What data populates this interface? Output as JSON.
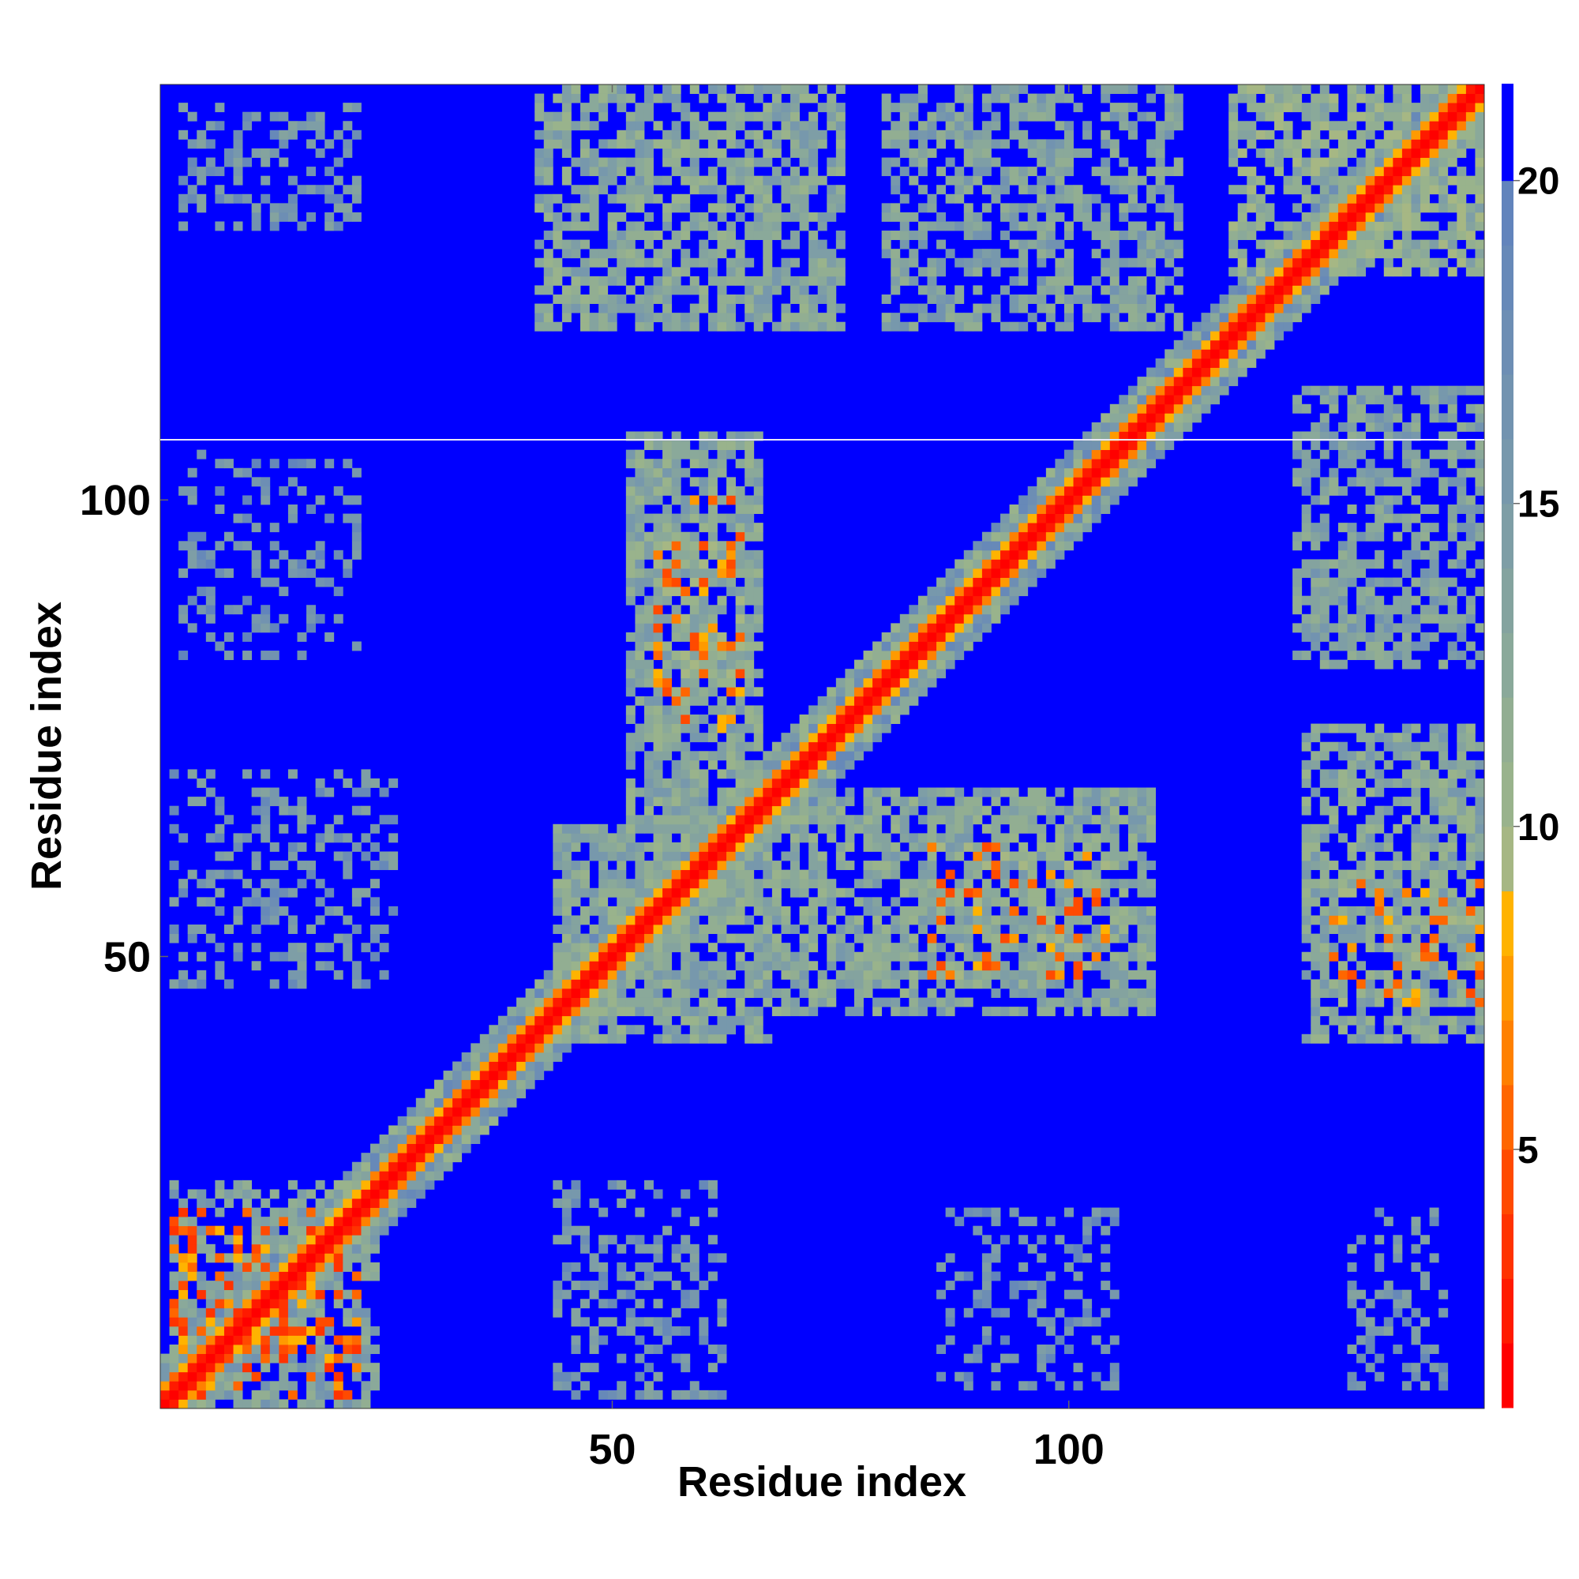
{
  "chart_data": {
    "type": "heatmap",
    "title": "",
    "xlabel": "Residue index",
    "ylabel": "Residue index",
    "n_residues": 145,
    "x_ticks": [
      {
        "value": 50,
        "label": "50"
      },
      {
        "value": 100,
        "label": "100"
      }
    ],
    "y_ticks": [
      {
        "value": 50,
        "label": "50"
      },
      {
        "value": 100,
        "label": "100"
      }
    ],
    "colorbar": {
      "range": [
        1,
        21.5
      ],
      "ticks": [
        {
          "value": 5,
          "label": "5"
        },
        {
          "value": 10,
          "label": "10"
        },
        {
          "value": 15,
          "label": "15"
        },
        {
          "value": 20,
          "label": "20"
        }
      ],
      "bins": [
        {
          "from": 1,
          "to": 2,
          "color": "#ff0000"
        },
        {
          "from": 2,
          "to": 3,
          "color": "#ff1a00"
        },
        {
          "from": 3,
          "to": 4,
          "color": "#ff3300"
        },
        {
          "from": 4,
          "to": 5,
          "color": "#ff4a00"
        },
        {
          "from": 5,
          "to": 6,
          "color": "#ff6600"
        },
        {
          "from": 6,
          "to": 7,
          "color": "#ff8000"
        },
        {
          "from": 7,
          "to": 8,
          "color": "#ff9a00"
        },
        {
          "from": 8,
          "to": 9,
          "color": "#ffb300"
        },
        {
          "from": 9,
          "to": 10,
          "color": "#a6b784"
        },
        {
          "from": 10,
          "to": 11,
          "color": "#99b38c"
        },
        {
          "from": 11,
          "to": 12,
          "color": "#92ae92"
        },
        {
          "from": 12,
          "to": 13,
          "color": "#8aa99a"
        },
        {
          "from": 13,
          "to": 14,
          "color": "#84a39f"
        },
        {
          "from": 14,
          "to": 15,
          "color": "#7e9ea6"
        },
        {
          "from": 15,
          "to": 16,
          "color": "#7798ac"
        },
        {
          "from": 16,
          "to": 17,
          "color": "#7293b0"
        },
        {
          "from": 17,
          "to": 18,
          "color": "#6d8eb4"
        },
        {
          "from": 18,
          "to": 19,
          "color": "#6789b8"
        },
        {
          "from": 19,
          "to": 20,
          "color": "#6284bc"
        },
        {
          "from": 20,
          "to": 21.5,
          "color": "#0000ff"
        }
      ]
    },
    "background_value": 21,
    "diagonal": {
      "core_value": 1,
      "core_halfwidth": 1.3,
      "band_halfwidth": 5
    },
    "contact_regions": [
      {
        "x": [
          2,
          24
        ],
        "y": [
          1,
          25
        ],
        "value": 14,
        "density": 0.55
      },
      {
        "x": [
          2,
          22
        ],
        "y": [
          2,
          22
        ],
        "value": 6,
        "density": 0.35
      },
      {
        "x": [
          44,
          62
        ],
        "y": [
          2,
          25
        ],
        "value": 16,
        "density": 0.35
      },
      {
        "x": [
          86,
          105
        ],
        "y": [
          3,
          22
        ],
        "value": 17,
        "density": 0.3
      },
      {
        "x": [
          131,
          141
        ],
        "y": [
          3,
          22
        ],
        "value": 16,
        "density": 0.35
      },
      {
        "x": [
          44,
          67
        ],
        "y": [
          41,
          64
        ],
        "value": 13,
        "density": 0.8
      },
      {
        "x": [
          52,
          66
        ],
        "y": [
          65,
          107
        ],
        "value": 13,
        "density": 0.75
      },
      {
        "x": [
          55,
          64
        ],
        "y": [
          75,
          100
        ],
        "value": 7,
        "density": 0.25
      },
      {
        "x": [
          68,
          109
        ],
        "y": [
          44,
          68
        ],
        "value": 13,
        "density": 0.7
      },
      {
        "x": [
          84,
          104
        ],
        "y": [
          48,
          62
        ],
        "value": 7,
        "density": 0.25
      },
      {
        "x": [
          2,
          26
        ],
        "y": [
          47,
          70
        ],
        "value": 16,
        "density": 0.35
      },
      {
        "x": [
          3,
          22
        ],
        "y": [
          83,
          105
        ],
        "value": 17,
        "density": 0.25
      },
      {
        "x": [
          42,
          75
        ],
        "y": [
          119,
          145
        ],
        "value": 13,
        "density": 0.65
      },
      {
        "x": [
          80,
          112
        ],
        "y": [
          119,
          145
        ],
        "value": 14,
        "density": 0.55
      },
      {
        "x": [
          3,
          22
        ],
        "y": [
          130,
          143
        ],
        "value": 16,
        "density": 0.35
      },
      {
        "x": [
          125,
          145
        ],
        "y": [
          82,
          112
        ],
        "value": 14,
        "density": 0.6
      },
      {
        "x": [
          126,
          145
        ],
        "y": [
          41,
          75
        ],
        "value": 13,
        "density": 0.65
      },
      {
        "x": [
          129,
          145
        ],
        "y": [
          45,
          58
        ],
        "value": 7,
        "density": 0.2
      },
      {
        "x": [
          118,
          145
        ],
        "y": [
          125,
          145
        ],
        "value": 12,
        "density": 0.7
      }
    ]
  }
}
